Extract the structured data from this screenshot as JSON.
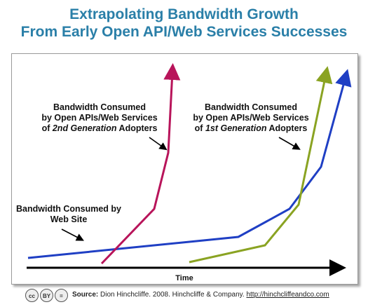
{
  "title": {
    "line1": "Extrapolating Bandwidth Growth",
    "line2": "From Early Open API/Web Services Successes"
  },
  "axis": {
    "x_label": "Time"
  },
  "labels": {
    "second_gen": {
      "line1": "Bandwidth Consumed",
      "line2": "by Open APIs/Web Services",
      "line3_italic": "2nd Generation",
      "line3_prefix": "of ",
      "line3_suffix": " Adopters"
    },
    "first_gen": {
      "line1": "Bandwidth Consumed",
      "line2": "by Open APIs/Web Services",
      "line3_italic": "1st Generation",
      "line3_prefix": "of ",
      "line3_suffix": " Adopters"
    },
    "web_site": {
      "line1": "Bandwidth Consumed by",
      "line2": "Web Site"
    }
  },
  "colors": {
    "title": "#2a7fa8",
    "web_site_line": "#1f3fc4",
    "second_gen_line": "#b8145a",
    "first_gen_line": "#8aa322",
    "axis": "#000000"
  },
  "footer": {
    "cc_badges": [
      "cc",
      "BY",
      "="
    ],
    "source_label": "Source:",
    "source_text": "Dion Hinchcliffe. 2008. Hinchcliffe & Company.",
    "link": "http://hinchcliffeandco.com"
  }
}
